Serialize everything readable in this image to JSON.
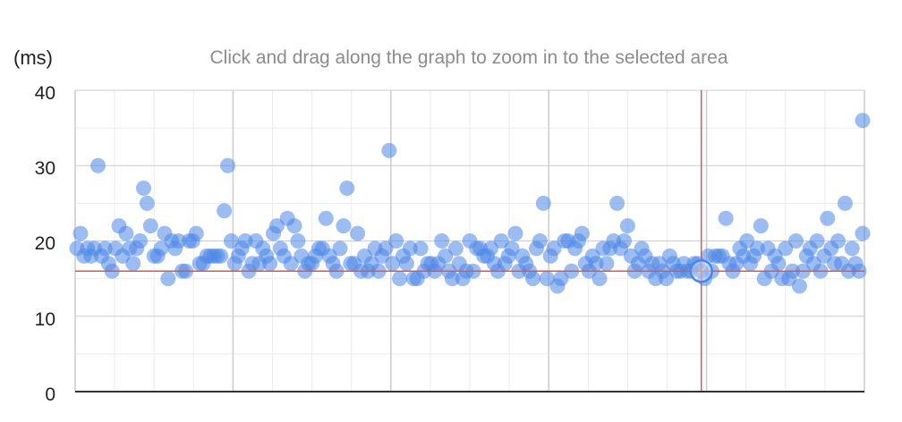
{
  "chart_data": {
    "type": "scatter",
    "title": "",
    "hint": "Click and drag along the graph to zoom in to the selected area",
    "ylabel": "(ms)",
    "ylim": [
      0,
      40
    ],
    "yticks": [
      "0",
      "10",
      "20",
      "30",
      "40"
    ],
    "grid": true,
    "point_color": "#4a86e8",
    "crosshair_color": "#e05545",
    "highlight": {
      "x": 179,
      "y": 16
    },
    "series": [
      {
        "x": [
          1,
          2,
          3,
          4,
          5,
          6,
          7,
          8,
          9,
          10,
          11,
          12,
          13,
          14,
          15,
          16,
          17,
          18,
          19,
          20,
          21,
          22,
          23,
          24,
          25,
          26,
          27,
          28,
          29,
          30,
          31,
          32,
          33,
          34,
          35,
          36,
          37,
          38,
          39,
          40,
          41,
          42,
          43,
          44,
          45,
          46,
          47,
          48,
          49,
          50,
          51,
          52,
          53,
          54,
          55,
          56,
          57,
          58,
          59,
          60,
          61,
          62,
          63,
          64,
          65,
          66,
          67,
          68,
          69,
          70,
          71,
          72,
          73,
          74,
          75,
          76,
          77,
          78,
          79,
          80,
          81,
          82,
          83,
          84,
          85,
          86,
          87,
          88,
          89,
          90,
          91,
          92,
          93,
          94,
          95,
          96,
          97,
          98,
          99,
          100,
          101,
          102,
          103,
          104,
          105,
          106,
          107,
          108,
          109,
          110,
          111,
          112,
          113,
          114,
          115,
          116,
          117,
          118,
          119,
          120,
          121,
          122,
          123,
          124,
          125,
          126,
          127,
          128,
          129,
          130,
          131,
          132,
          133,
          134,
          135,
          136,
          137,
          138,
          139,
          140,
          141,
          142,
          143,
          144,
          145,
          146,
          147,
          148,
          149,
          150,
          151,
          152,
          153,
          154,
          155,
          156,
          157,
          158,
          159,
          160,
          161,
          162,
          163,
          164,
          165,
          166,
          167,
          168,
          169,
          170,
          171,
          172,
          173,
          174,
          175,
          176,
          177,
          178,
          179,
          180,
          181,
          182,
          183,
          184,
          185,
          186,
          187,
          188,
          189,
          190,
          191,
          192,
          193,
          194,
          195,
          196,
          197,
          198,
          199,
          200,
          201,
          202,
          203,
          204,
          205,
          206,
          207,
          208,
          209,
          210,
          211,
          212,
          213,
          214,
          215,
          216,
          217,
          218,
          219,
          220,
          221,
          222,
          223,
          224,
          225
        ],
        "y": [
          19,
          21,
          18,
          19,
          18,
          19,
          30,
          18,
          19,
          17,
          16,
          19,
          22,
          18,
          21,
          19,
          17,
          19,
          20,
          27,
          25,
          22,
          18,
          18,
          19,
          21,
          15,
          20,
          19,
          20,
          16,
          16,
          20,
          20,
          21,
          17,
          17,
          18,
          18,
          18,
          18,
          18,
          24,
          30,
          20,
          17,
          18,
          19,
          20,
          16,
          17,
          20,
          17,
          19,
          18,
          17,
          21,
          22,
          19,
          18,
          23,
          17,
          22,
          20,
          18,
          16,
          17,
          17,
          18,
          19,
          19,
          23,
          18,
          17,
          16,
          19,
          22,
          27,
          17,
          17,
          21,
          16,
          18,
          16,
          17,
          19,
          16,
          18,
          19,
          32,
          17,
          20,
          15,
          18,
          17,
          19,
          15,
          15,
          19,
          16,
          17,
          17,
          16,
          17,
          20,
          18,
          16,
          15,
          19,
          17,
          15,
          16,
          20,
          16,
          19,
          19,
          18,
          18,
          19,
          17,
          16,
          20,
          17,
          18,
          19,
          21,
          16,
          18,
          17,
          16,
          15,
          19,
          20,
          25,
          15,
          18,
          19,
          14,
          15,
          20,
          20,
          16,
          19,
          20,
          21,
          17,
          16,
          18,
          17,
          15,
          19,
          17,
          19,
          20,
          25,
          19,
          20,
          22,
          18,
          16,
          17,
          19,
          18,
          16,
          17,
          15,
          17,
          16,
          15,
          18,
          17,
          16,
          16,
          17,
          16,
          16,
          17,
          17,
          16,
          15,
          18,
          16,
          18,
          18,
          18,
          23,
          17,
          16,
          17,
          19,
          18,
          20,
          17,
          18,
          19,
          22,
          15,
          19,
          16,
          18,
          17,
          15,
          19,
          15,
          16,
          20,
          14,
          16,
          18,
          19,
          17,
          20,
          16,
          18,
          23,
          19,
          17,
          20,
          17,
          25,
          16,
          19,
          17,
          16,
          21
        ],
        "x_extra": [
          225
        ],
        "y_extra": [
          36
        ]
      }
    ]
  }
}
